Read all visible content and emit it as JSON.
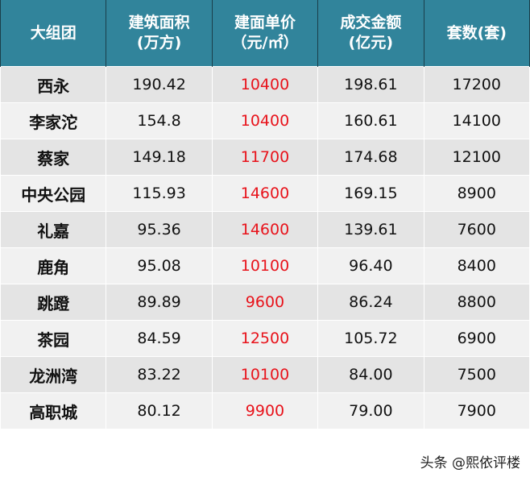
{
  "headers": [
    "大组团",
    "建筑面积\n(万方)",
    "建面单价\n（元/㎡）",
    "成交金额\n(亿元)",
    "套数(套)"
  ],
  "rows": [
    [
      "西永",
      "190.42",
      "10400",
      "198.61",
      "17200"
    ],
    [
      "李家沱",
      "154.8",
      "10400",
      "160.61",
      "14100"
    ],
    [
      "蔡家",
      "149.18",
      "11700",
      "174.68",
      "12100"
    ],
    [
      "中央公园",
      "115.93",
      "14600",
      "169.15",
      "8900"
    ],
    [
      "礼嘉",
      "95.36",
      "14600",
      "139.61",
      "7600"
    ],
    [
      "鹿角",
      "95.08",
      "10100",
      "96.40",
      "8400"
    ],
    [
      "跳蹬",
      "89.89",
      "9600",
      "86.24",
      "8800"
    ],
    [
      "茶园",
      "84.59",
      "12500",
      "105.72",
      "6900"
    ],
    [
      "龙洲湾",
      "83.22",
      "10100",
      "84.00",
      "7500"
    ],
    [
      "高职城",
      "80.12",
      "9900",
      "79.00",
      "7900"
    ]
  ],
  "watermark": "头条 @熙依评楼",
  "colors": {
    "header_bg": "#31849b",
    "price": "#e8131b"
  }
}
